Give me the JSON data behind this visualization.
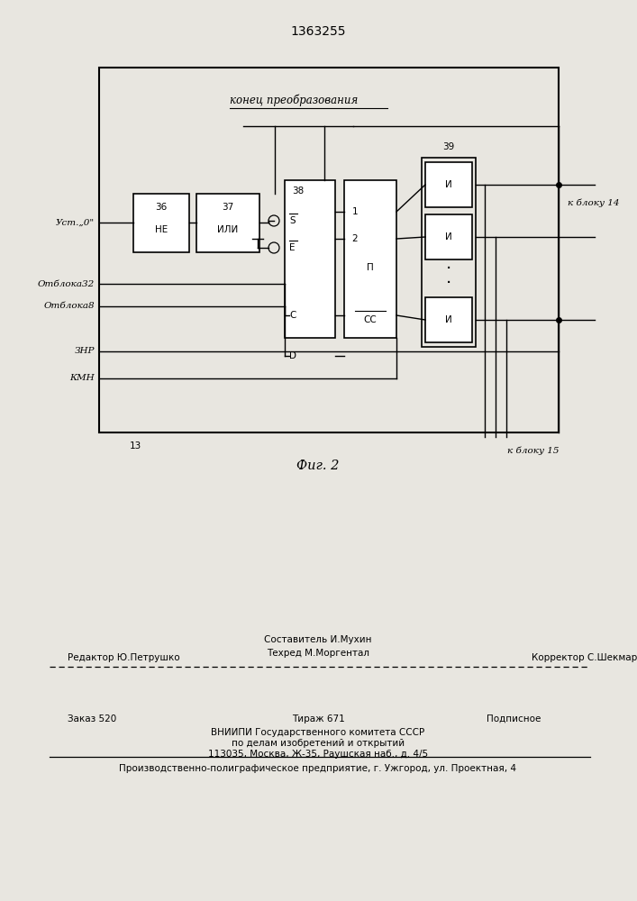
{
  "title": "1363255",
  "fig_label": "Фиг. 2",
  "bg_color": "#e8e6e0",
  "diagram": {
    "konec_text": "конец преобразования"
  },
  "footer": {
    "line1_col1": "Редактор Ю.Петрушко",
    "line1_col2_top": "Составитель И.Мухин",
    "line1_col2_bot": "Техред М.Моргентал",
    "line1_col3": "Корректор С.Шекмар",
    "line2_col1": "Заказ 520",
    "line2_col2": "Тираж 671",
    "line2_col3": "Подписное",
    "line3": "ВНИИПИ Государственного комитета СССР",
    "line4": "по делам изобретений и открытий",
    "line5": "113035, Москва, Ж-35, Раушская наб., д. 4/5",
    "line_last": "Производственно-полиграфическое предприятие, г. Ужгород, ул. Проектная, 4"
  }
}
